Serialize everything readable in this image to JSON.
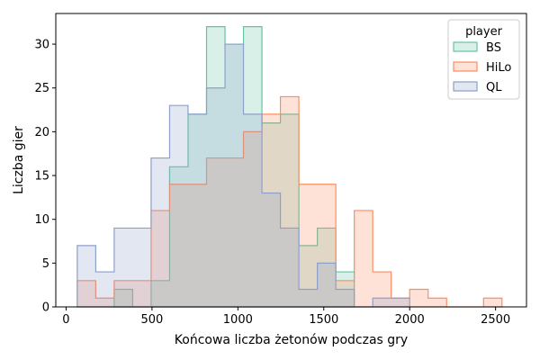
{
  "chart_data": {
    "type": "histogram",
    "style": "step-filled",
    "xlabel": "Końcowa liczba żetonów podczas gry",
    "ylabel": "Liczba gier",
    "xlim": [
      -60,
      2680
    ],
    "ylim": [
      0,
      33.5
    ],
    "xticks": [
      0,
      500,
      1000,
      1500,
      2000,
      2500
    ],
    "yticks": [
      0,
      5,
      10,
      15,
      20,
      25,
      30
    ],
    "legend": {
      "title": "player",
      "placement": "top-right"
    },
    "bins": {
      "start": 65,
      "width": 107.5,
      "count": 23
    },
    "series": [
      {
        "name": "BS",
        "color": "#66c2a5",
        "counts": [
          0,
          0,
          2,
          0,
          3,
          16,
          22,
          32,
          30,
          32,
          21,
          22,
          7,
          9,
          4,
          0,
          0,
          0,
          0,
          0,
          0,
          0,
          0
        ]
      },
      {
        "name": "HiLo",
        "color": "#fc8d62",
        "counts": [
          3,
          1,
          3,
          3,
          11,
          14,
          14,
          17,
          17,
          20,
          22,
          24,
          14,
          14,
          3,
          11,
          4,
          1,
          2,
          1,
          0,
          0,
          1
        ]
      },
      {
        "name": "QL",
        "color": "#8da0cb",
        "counts": [
          7,
          4,
          9,
          9,
          17,
          23,
          22,
          25,
          30,
          22,
          13,
          9,
          2,
          5,
          2,
          0,
          1,
          1,
          0,
          0,
          0,
          0,
          0
        ]
      }
    ]
  }
}
